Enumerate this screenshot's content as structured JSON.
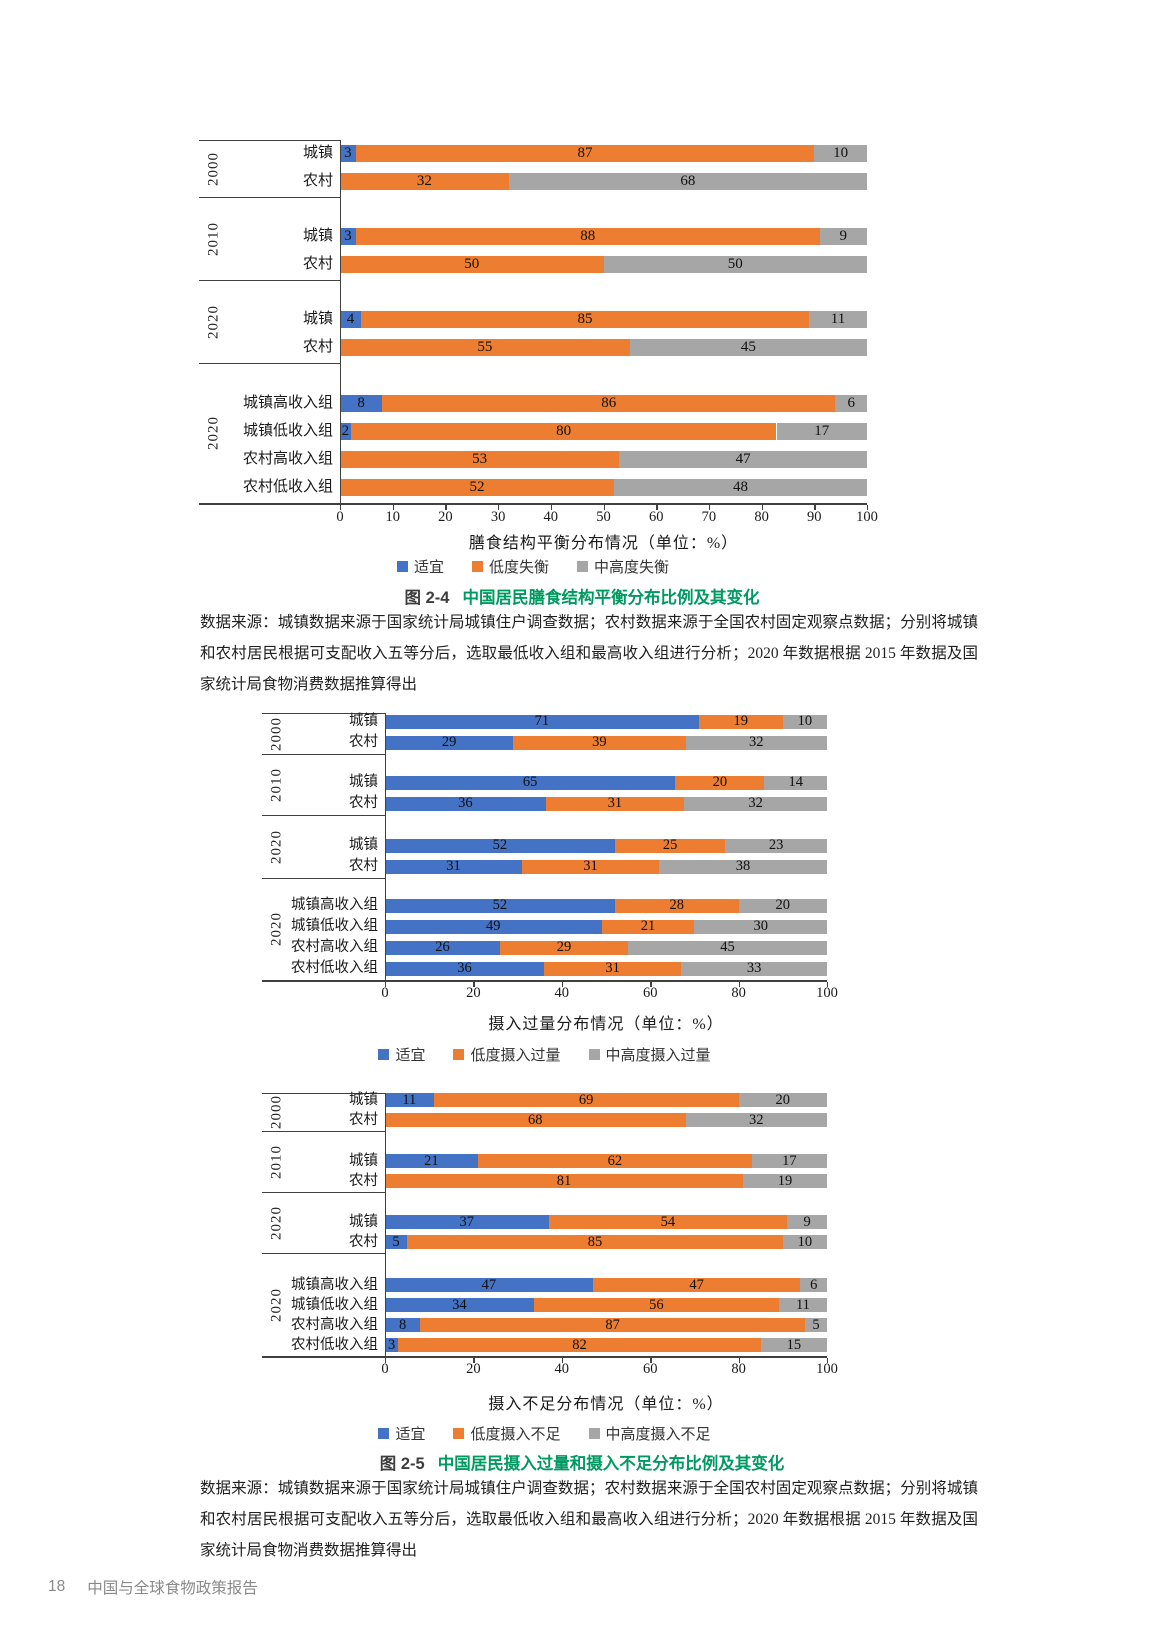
{
  "page": {
    "figures": [
      {
        "caption_label": "图 2-4",
        "caption_title": "中国居民膳食结构平衡分布比例及其变化",
        "source_note": "数据来源：城镇数据来源于国家统计局城镇住户调查数据；农村数据来源于全国农村固定观察点数据；分别将城镇和农村居民根据可支配收入五等分后，选取最低收入组和最高收入组进行分析；2020 年数据根据 2015 年数据及国家统计局食物消费数据推算得出"
      },
      {
        "caption_label": "图 2-5",
        "caption_title": "中国居民摄入过量和摄入不足分布比例及其变化",
        "source_note": "数据来源：城镇数据来源于国家统计局城镇住户调查数据；农村数据来源于全国农村固定观察点数据；分别将城镇和农村居民根据可支配收入五等分后，选取最低收入组和最高收入组进行分析；2020 年数据根据 2015 年数据及国家统计局食物消费数据推算得出"
      }
    ],
    "footer": {
      "page_number": "18",
      "report_title": "中国与全球食物政策报告"
    }
  },
  "colors": {
    "series_blue": "#4472C4",
    "series_orange": "#ED7D31",
    "series_gray": "#A6A6A6",
    "caption_green": "#00995f"
  },
  "chart_data": [
    {
      "type": "bar",
      "variant": "horizontal-stacked",
      "xlabel": "膳食结构平衡分布情况（单位：%）",
      "xlim": [
        0,
        100
      ],
      "ticks": [
        0,
        10,
        20,
        30,
        40,
        50,
        60,
        70,
        80,
        90,
        100
      ],
      "legend": [
        "适宜",
        "低度失衡",
        "中高度失衡"
      ],
      "series_colors": [
        "#4472C4",
        "#ED7D31",
        "#A6A6A6"
      ],
      "groups": [
        {
          "year": "2000",
          "rows": [
            {
              "label": "城镇",
              "values": [
                3,
                87,
                10
              ]
            },
            {
              "label": "农村",
              "values": [
                0,
                32,
                68
              ]
            }
          ]
        },
        {
          "year": "2010",
          "rows": [
            {
              "label": "城镇",
              "values": [
                3,
                88,
                9
              ]
            },
            {
              "label": "农村",
              "values": [
                0,
                50,
                50
              ]
            }
          ]
        },
        {
          "year": "2020",
          "rows": [
            {
              "label": "城镇",
              "values": [
                4,
                85,
                11
              ]
            },
            {
              "label": "农村",
              "values": [
                0,
                55,
                45
              ]
            }
          ]
        },
        {
          "year": "2020",
          "rows": [
            {
              "label": "城镇高收入组",
              "values": [
                8,
                86,
                6
              ]
            },
            {
              "label": "城镇低收入组",
              "values": [
                2,
                80,
                17
              ]
            },
            {
              "label": "农村高收入组",
              "values": [
                0,
                53,
                47
              ]
            },
            {
              "label": "农村低收入组",
              "values": [
                0,
                52,
                48
              ]
            }
          ]
        }
      ]
    },
    {
      "type": "bar",
      "variant": "horizontal-stacked",
      "xlabel": "摄入过量分布情况（单位：%）",
      "xlim": [
        0,
        100
      ],
      "ticks": [
        0,
        20,
        40,
        60,
        80,
        100
      ],
      "legend": [
        "适宜",
        "低度摄入过量",
        "中高度摄入过量"
      ],
      "series_colors": [
        "#4472C4",
        "#ED7D31",
        "#A6A6A6"
      ],
      "groups": [
        {
          "year": "2000",
          "rows": [
            {
              "label": "城镇",
              "values": [
                71,
                19,
                10
              ]
            },
            {
              "label": "农村",
              "values": [
                29,
                39,
                32
              ]
            }
          ]
        },
        {
          "year": "2010",
          "rows": [
            {
              "label": "城镇",
              "values": [
                65,
                20,
                14
              ]
            },
            {
              "label": "农村",
              "values": [
                36,
                31,
                32
              ]
            }
          ]
        },
        {
          "year": "2020",
          "rows": [
            {
              "label": "城镇",
              "values": [
                52,
                25,
                23
              ]
            },
            {
              "label": "农村",
              "values": [
                31,
                31,
                38
              ]
            }
          ]
        },
        {
          "year": "2020",
          "rows": [
            {
              "label": "城镇高收入组",
              "values": [
                52,
                28,
                20
              ]
            },
            {
              "label": "城镇低收入组",
              "values": [
                49,
                21,
                30
              ]
            },
            {
              "label": "农村高收入组",
              "values": [
                26,
                29,
                45
              ]
            },
            {
              "label": "农村低收入组",
              "values": [
                36,
                31,
                33
              ]
            }
          ]
        }
      ]
    },
    {
      "type": "bar",
      "variant": "horizontal-stacked",
      "xlabel": "摄入不足分布情况（单位：%）",
      "xlim": [
        0,
        100
      ],
      "ticks": [
        0,
        20,
        40,
        60,
        80,
        100
      ],
      "legend": [
        "适宜",
        "低度摄入不足",
        "中高度摄入不足"
      ],
      "series_colors": [
        "#4472C4",
        "#ED7D31",
        "#A6A6A6"
      ],
      "groups": [
        {
          "year": "2000",
          "rows": [
            {
              "label": "城镇",
              "values": [
                11,
                69,
                20
              ]
            },
            {
              "label": "农村",
              "values": [
                0,
                68,
                32
              ]
            }
          ]
        },
        {
          "year": "2010",
          "rows": [
            {
              "label": "城镇",
              "values": [
                21,
                62,
                17
              ]
            },
            {
              "label": "农村",
              "values": [
                0,
                81,
                19
              ]
            }
          ]
        },
        {
          "year": "2020",
          "rows": [
            {
              "label": "城镇",
              "values": [
                37,
                54,
                9
              ]
            },
            {
              "label": "农村",
              "values": [
                5,
                85,
                10
              ]
            }
          ]
        },
        {
          "year": "2020",
          "rows": [
            {
              "label": "城镇高收入组",
              "values": [
                47,
                47,
                6
              ]
            },
            {
              "label": "城镇低收入组",
              "values": [
                34,
                56,
                11
              ]
            },
            {
              "label": "农村高收入组",
              "values": [
                8,
                87,
                5
              ]
            },
            {
              "label": "农村低收入组",
              "values": [
                3,
                82,
                15
              ]
            }
          ]
        }
      ]
    }
  ]
}
